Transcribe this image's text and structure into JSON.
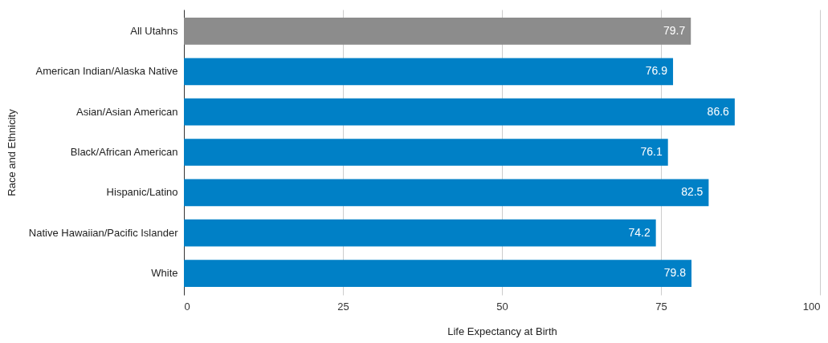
{
  "chart_data": {
    "type": "bar",
    "orientation": "horizontal",
    "xlabel": "Life Expectancy at Birth",
    "ylabel": "Race and Ethnicity",
    "categories": [
      "All Utahns",
      "American Indian/Alaska Native",
      "Asian/Asian American",
      "Black/African American",
      "Hispanic/Latino",
      "Native Hawaiian/Pacific Islander",
      "White"
    ],
    "values": [
      79.7,
      76.9,
      86.6,
      76.1,
      82.5,
      74.2,
      79.8
    ],
    "colors": [
      "#8c8c8c",
      "#0080c6",
      "#0080c6",
      "#0080c6",
      "#0080c6",
      "#0080c6",
      "#0080c6"
    ],
    "xlim": [
      0,
      100
    ],
    "xticks": [
      0,
      25,
      50,
      75,
      100
    ],
    "grid": "x",
    "data_labels": true
  }
}
